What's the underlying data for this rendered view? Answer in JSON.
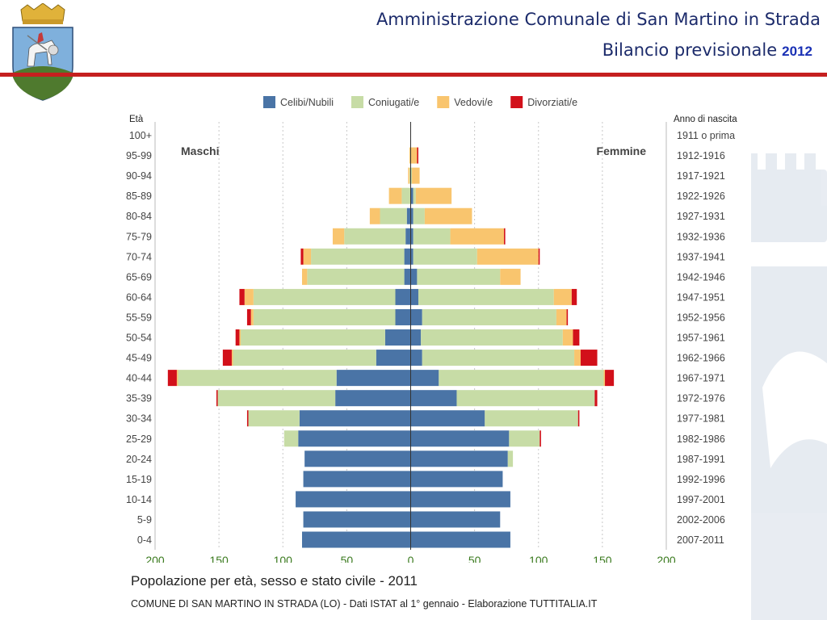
{
  "header": {
    "title": "Amministrazione Comunale di San Martino in Strada",
    "subtitle": "Bilancio previsionale",
    "year": "2012"
  },
  "colors": {
    "accent_line": "#c51f1f",
    "title_text": "#1c2b6b",
    "celibi": "#4a74a6",
    "coniugati": "#c7dca6",
    "vedovi": "#f9c56e",
    "divorziati": "#d2101a",
    "axis_text": "#3a7a1e"
  },
  "icons": {
    "crest": "municipal-coat-of-arms-icon",
    "watermark": "crest-watermark-icon"
  },
  "chart_data": {
    "type": "bar",
    "orientation": "horizontal-population-pyramid",
    "title": "Popolazione per età, sesso e stato civile - 2011",
    "source": "COMUNE DI SAN MARTINO IN STRADA (LO) - Dati ISTAT al 1° gennaio - Elaborazione TUTTITALIA.IT",
    "ylabel_left": "Età",
    "ylabel_right": "Anno di nascita",
    "left_label": "Maschi",
    "right_label": "Femmine",
    "xlim": [
      -200,
      200
    ],
    "xticks": [
      -200,
      -150,
      -100,
      -50,
      0,
      50,
      100,
      150,
      200
    ],
    "xtick_labels": [
      "200",
      "150",
      "100",
      "50",
      "0",
      "50",
      "100",
      "150",
      "200"
    ],
    "grid": true,
    "legend_position": "top",
    "legend": [
      "Celibi/Nubili",
      "Coniugati/e",
      "Vedovi/e",
      "Divorziati/e"
    ],
    "categories": [
      "100+",
      "95-99",
      "90-94",
      "85-89",
      "80-84",
      "75-79",
      "70-74",
      "65-69",
      "60-64",
      "55-59",
      "50-54",
      "45-49",
      "40-44",
      "35-39",
      "30-34",
      "25-29",
      "20-24",
      "15-19",
      "10-14",
      "5-9",
      "0-4"
    ],
    "birth_years": [
      "1911 o prima",
      "1912-1916",
      "1917-1921",
      "1922-1926",
      "1927-1931",
      "1932-1936",
      "1937-1941",
      "1942-1946",
      "1947-1951",
      "1952-1956",
      "1957-1961",
      "1962-1966",
      "1967-1971",
      "1972-1976",
      "1977-1981",
      "1982-1986",
      "1987-1991",
      "1992-1996",
      "1997-2001",
      "2002-2006",
      "2007-2011"
    ],
    "males": {
      "Celibi/Nubili": [
        0,
        0,
        0,
        0,
        3,
        4,
        5,
        5,
        12,
        12,
        20,
        27,
        58,
        59,
        87,
        88,
        83,
        84,
        90,
        84,
        85
      ],
      "Coniugati/e": [
        0,
        0,
        1,
        7,
        21,
        48,
        73,
        76,
        111,
        111,
        113,
        112,
        124,
        92,
        40,
        11,
        0,
        0,
        0,
        0,
        0
      ],
      "Vedovi/e": [
        0,
        1,
        1,
        10,
        8,
        9,
        6,
        4,
        7,
        2,
        1,
        1,
        1,
        0,
        0,
        0,
        0,
        0,
        0,
        0,
        0
      ],
      "Divorziati/e": [
        0,
        0,
        0,
        0,
        0,
        0,
        2,
        0,
        4,
        3,
        3,
        7,
        7,
        1,
        1,
        0,
        0,
        0,
        0,
        0,
        0
      ]
    },
    "females": {
      "Celibi/Nubili": [
        0,
        0,
        0,
        2,
        2,
        2,
        2,
        5,
        6,
        9,
        8,
        9,
        22,
        36,
        58,
        77,
        76,
        72,
        78,
        70,
        78
      ],
      "Coniugati/e": [
        0,
        0,
        1,
        2,
        9,
        29,
        50,
        65,
        106,
        105,
        111,
        119,
        129,
        108,
        73,
        24,
        4,
        0,
        0,
        0,
        0
      ],
      "Vedovi/e": [
        0,
        5,
        6,
        28,
        37,
        42,
        48,
        16,
        14,
        8,
        8,
        5,
        1,
        0,
        0,
        0,
        0,
        0,
        0,
        0,
        0
      ],
      "Divorziati/e": [
        0,
        1,
        0,
        0,
        0,
        1,
        1,
        0,
        4,
        1,
        5,
        13,
        7,
        2,
        1,
        1,
        0,
        0,
        0,
        0,
        0
      ]
    }
  }
}
